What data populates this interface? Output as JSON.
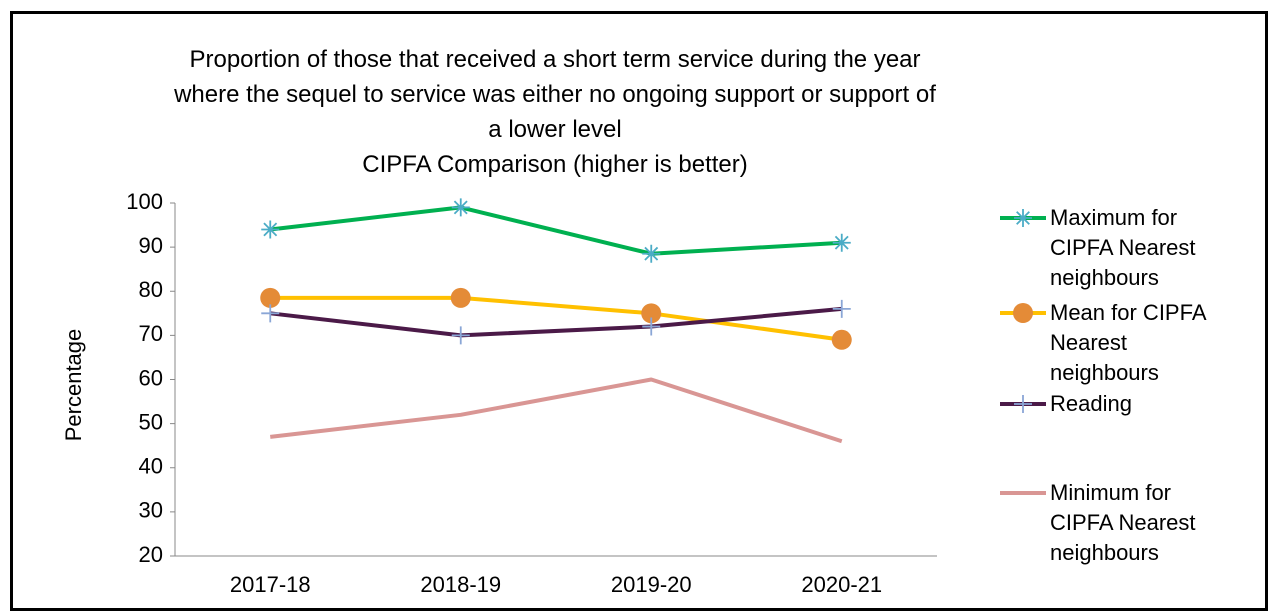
{
  "chart_data": {
    "type": "line",
    "title": "Proportion of those that received a short term service during the year where the sequel to service was either no ongoing support or support of a lower level",
    "subtitle": "CIPFA Comparison (higher is better)",
    "y_label": "Percentage",
    "categories": [
      "2017-18",
      "2018-19",
      "2019-20",
      "2020-21"
    ],
    "ylim": [
      20,
      100
    ],
    "yticks": [
      20,
      30,
      40,
      50,
      60,
      70,
      80,
      90,
      100
    ],
    "legend": "right",
    "series": [
      {
        "name": "Maximum for CIPFA Nearest neighbours",
        "color": "#00b050",
        "marker": "asterisk",
        "marker_color": "#4bacc6",
        "values": [
          94,
          99,
          88.5,
          91
        ]
      },
      {
        "name": "Mean for CIPFA Nearest neighbours",
        "color": "#ffc000",
        "marker": "circle",
        "marker_color": "#e48b37",
        "values": [
          78.5,
          78.5,
          75,
          69
        ]
      },
      {
        "name": "Reading",
        "color": "#4b1a48",
        "marker": "plus",
        "marker_color": "#8aa6d6",
        "values": [
          75,
          70,
          72,
          76
        ]
      },
      {
        "name": "Minimum for CIPFA Nearest neighbours",
        "color": "#d99694",
        "marker": "none",
        "marker_color": "#d99694",
        "values": [
          47,
          52,
          60,
          46
        ]
      }
    ]
  }
}
